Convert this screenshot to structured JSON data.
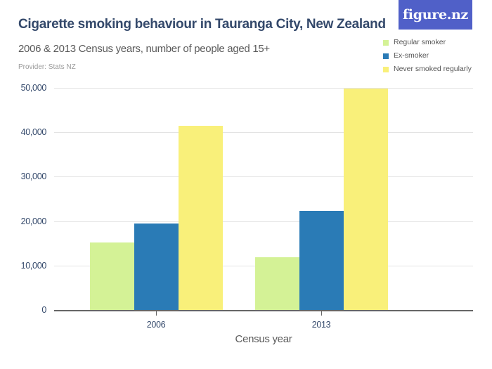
{
  "header": {
    "title": "Cigarette smoking behaviour in Tauranga City, New Zealand",
    "subtitle": "2006 & 2013 Census years, number of people aged 15+",
    "provider": "Provider: Stats NZ"
  },
  "logo": {
    "label": "figure.nz",
    "color": "#5060c8"
  },
  "legend": [
    {
      "label": "Regular smoker",
      "color": "#d4f296"
    },
    {
      "label": "Ex-smoker",
      "color": "#2a7bb6"
    },
    {
      "label": "Never smoked regularly",
      "color": "#f9f07a"
    }
  ],
  "y_ticks": [
    "0",
    "10,000",
    "20,000",
    "30,000",
    "40,000",
    "50,000"
  ],
  "x_labels": [
    "2006",
    "2013"
  ],
  "x_title": "Census year",
  "chart_data": {
    "type": "bar",
    "title": "Cigarette smoking behaviour in Tauranga City, New Zealand",
    "subtitle": "2006 & 2013 Census years, number of people aged 15+",
    "source": "Provider: Stats NZ",
    "categories": [
      "2006",
      "2013"
    ],
    "series": [
      {
        "name": "Regular smoker",
        "color": "#d4f296",
        "values": [
          15300,
          12000
        ]
      },
      {
        "name": "Ex-smoker",
        "color": "#2a7bb6",
        "values": [
          19550,
          22400
        ]
      },
      {
        "name": "Never smoked regularly",
        "color": "#f9f07a",
        "values": [
          41500,
          49800
        ]
      }
    ],
    "xlabel": "Census year",
    "ylabel": "",
    "ylim": [
      0,
      50000
    ],
    "y_ticks": [
      0,
      10000,
      20000,
      30000,
      40000,
      50000
    ],
    "grid": true,
    "legend_position": "top-right"
  }
}
